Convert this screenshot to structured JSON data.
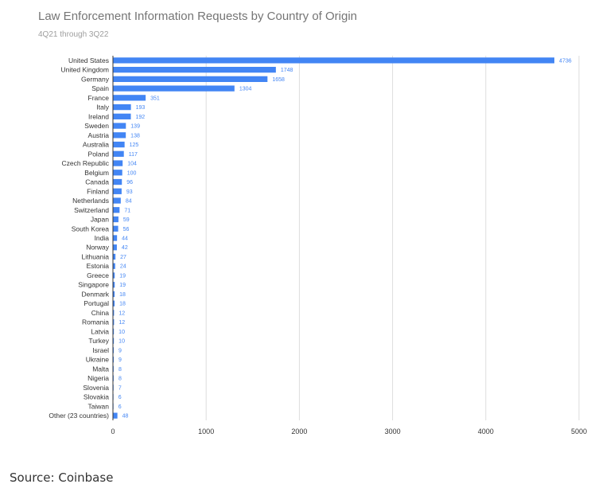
{
  "colors": {
    "bar": "#4285f4",
    "label": "#333333",
    "value_label": "#4285f4",
    "grid": "#dddddd",
    "axis": "#333333"
  },
  "chart_data": {
    "type": "bar",
    "orientation": "horizontal",
    "title": "Law Enforcement Information Requests by Country of Origin",
    "subtitle": "4Q21 through 3Q22",
    "categories": [
      "United States",
      "United Kingdom",
      "Germany",
      "Spain",
      "France",
      "Italy",
      "Ireland",
      "Sweden",
      "Austria",
      "Australia",
      "Poland",
      "Czech Republic",
      "Belgium",
      "Canada",
      "Finland",
      "Netherlands",
      "Switzerland",
      "Japan",
      "South Korea",
      "India",
      "Norway",
      "Lithuania",
      "Estonia",
      "Greece",
      "Singapore",
      "Denmark",
      "Portugal",
      "China",
      "Romania",
      "Latvia",
      "Turkey",
      "Israel",
      "Ukraine",
      "Malta",
      "Nigeria",
      "Slovenia",
      "Slovakia",
      "Taiwan",
      "Other (23 countries)"
    ],
    "values": [
      4736,
      1748,
      1658,
      1304,
      351,
      193,
      192,
      139,
      138,
      125,
      117,
      104,
      100,
      96,
      93,
      84,
      71,
      59,
      56,
      44,
      42,
      27,
      24,
      19,
      19,
      18,
      18,
      12,
      12,
      10,
      10,
      9,
      9,
      8,
      8,
      7,
      6,
      6,
      48
    ],
    "xlim": [
      0,
      5000
    ],
    "xticks": [
      0,
      1000,
      2000,
      3000,
      4000,
      5000
    ],
    "grid": true,
    "legend": "none",
    "data_labels": true
  },
  "source": "Source: Coinbase"
}
